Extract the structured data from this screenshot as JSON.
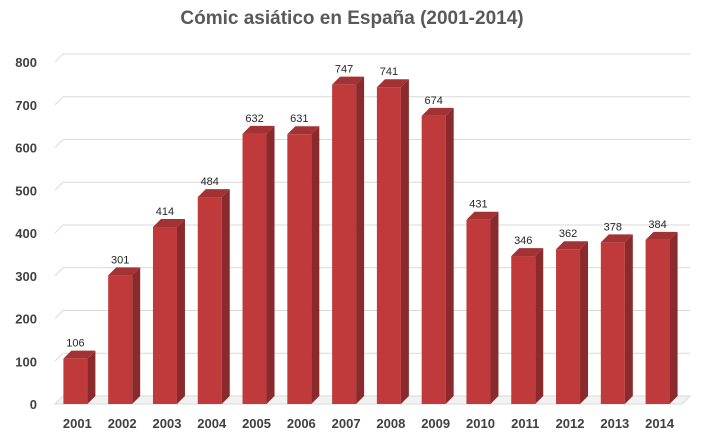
{
  "chart_data": {
    "type": "bar",
    "title": "Cómic asiático en España (2001-2014)",
    "categories": [
      "2001",
      "2002",
      "2003",
      "2004",
      "2005",
      "2006",
      "2007",
      "2008",
      "2009",
      "2010",
      "2011",
      "2012",
      "2013",
      "2014"
    ],
    "values": [
      106,
      301,
      414,
      484,
      632,
      631,
      747,
      741,
      674,
      431,
      346,
      362,
      378,
      384
    ],
    "ylim": [
      0,
      800
    ],
    "yticks": [
      0,
      100,
      200,
      300,
      400,
      500,
      600,
      700,
      800
    ],
    "grid": true,
    "legend": "none",
    "bar_color": "#c0393b",
    "bar_side_color": "#8b2a2c",
    "bar_top_color": "#a33234"
  }
}
